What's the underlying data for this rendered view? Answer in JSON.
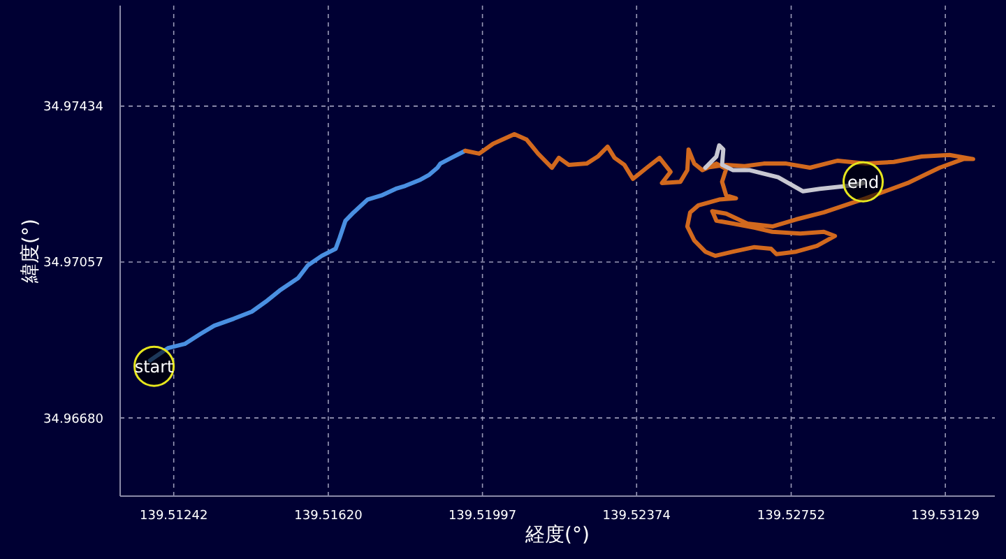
{
  "chart_data": {
    "type": "line",
    "xlabel": "経度(°)",
    "ylabel": "緯度(°)",
    "xlim": [
      139.51111,
      139.5325
    ],
    "ylim": [
      34.96491,
      34.97677
    ],
    "xticks": [
      139.51242,
      {
        "value": 139.5162,
        "label": "139.51620"
      },
      139.51997,
      139.52374,
      139.52752,
      139.53129
    ],
    "yticks": [
      {
        "value": 34.9668,
        "label": "34.96680"
      },
      34.97057,
      34.97434
    ],
    "grid": true,
    "series": [
      {
        "color": "#4a90e2",
        "x": [
          139.51184,
          139.51228,
          139.51269,
          139.51307,
          139.51341,
          139.51389,
          139.51433,
          139.51467,
          139.51501,
          139.51546,
          139.5157,
          139.51604,
          139.51638,
          139.51648,
          139.51662,
          139.51682,
          139.51716,
          139.5175,
          139.51785,
          139.51808,
          139.51843,
          139.51867,
          139.51887,
          139.51894,
          139.51921,
          139.51955
        ],
        "values": [
          34.96819,
          34.96849,
          34.96859,
          34.96883,
          34.96903,
          34.9692,
          34.96937,
          34.96961,
          34.96988,
          34.97018,
          34.97049,
          34.97072,
          34.97089,
          34.97116,
          34.97157,
          34.97177,
          34.97208,
          34.97218,
          34.97234,
          34.97241,
          34.97255,
          34.97268,
          34.97285,
          34.97295,
          34.97309,
          34.97326
        ]
      },
      {
        "color": "#d2691e",
        "x": [
          139.51955,
          139.51989,
          139.52023,
          139.52075,
          139.52105,
          139.52133,
          139.52167,
          139.52184,
          139.52208,
          139.52252,
          139.52279,
          139.52303,
          139.5232,
          139.52344,
          139.52365,
          139.52399,
          139.5243,
          139.52457,
          139.52436,
          139.52481,
          139.52498,
          139.52501,
          139.52515,
          139.52535,
          139.52569,
          139.52593,
          139.52583,
          139.52593,
          139.52617,
          139.52576,
          139.52525,
          139.52505,
          139.52498,
          139.52515,
          139.52542,
          139.52566,
          139.5261,
          139.52662,
          139.52703,
          139.52716,
          139.52764,
          139.52815,
          139.52859,
          139.52832,
          139.52774,
          139.52706,
          139.52662,
          139.5261,
          139.52569,
          139.52559,
          139.52593,
          139.52645,
          139.52706,
          139.52764,
          139.52832,
          139.52934,
          139.53037,
          139.53115,
          139.53173,
          139.53197,
          139.53139,
          139.53071,
          139.53003,
          139.52934,
          139.52866,
          139.52798,
          139.5274,
          139.52685,
          139.52638,
          139.52593,
          139.52542
        ],
        "values": [
          34.97326,
          34.97319,
          34.97343,
          34.97366,
          34.97353,
          34.97319,
          34.97285,
          34.97309,
          34.97292,
          34.97295,
          34.97312,
          34.97336,
          34.97309,
          34.97292,
          34.97258,
          34.97285,
          34.97309,
          34.97275,
          34.97248,
          34.97251,
          34.97279,
          34.97329,
          34.97295,
          34.97279,
          34.97295,
          34.97282,
          34.97251,
          34.97218,
          34.97211,
          34.97208,
          34.97194,
          34.97177,
          34.97143,
          34.97109,
          34.97082,
          34.97072,
          34.97082,
          34.97093,
          34.97089,
          34.97076,
          34.97082,
          34.97096,
          34.9712,
          34.9713,
          34.97126,
          34.9713,
          34.9714,
          34.9715,
          34.97157,
          34.9718,
          34.97174,
          34.9715,
          34.97143,
          34.9716,
          34.97177,
          34.97211,
          34.97248,
          34.97285,
          34.97306,
          34.97306,
          34.97316,
          34.97312,
          34.97299,
          34.97295,
          34.97302,
          34.97285,
          34.97295,
          34.97295,
          34.97289,
          34.97292,
          34.97285
        ]
      },
      {
        "color": "#c8c8d2",
        "x": [
          139.52542,
          139.52569,
          139.52576,
          139.52586,
          139.52583,
          139.5261,
          139.52651,
          139.5272,
          139.52781,
          139.52822,
          139.5289,
          139.52928
        ],
        "values": [
          34.97285,
          34.97312,
          34.97339,
          34.97329,
          34.97292,
          34.97279,
          34.97279,
          34.97262,
          34.97228,
          34.97234,
          34.97241,
          34.97248
        ]
      }
    ],
    "annotations": [
      {
        "text": "start",
        "x": 139.51194,
        "y": 34.96805
      },
      {
        "text": "end",
        "x": 139.52928,
        "y": 34.97251
      }
    ]
  }
}
